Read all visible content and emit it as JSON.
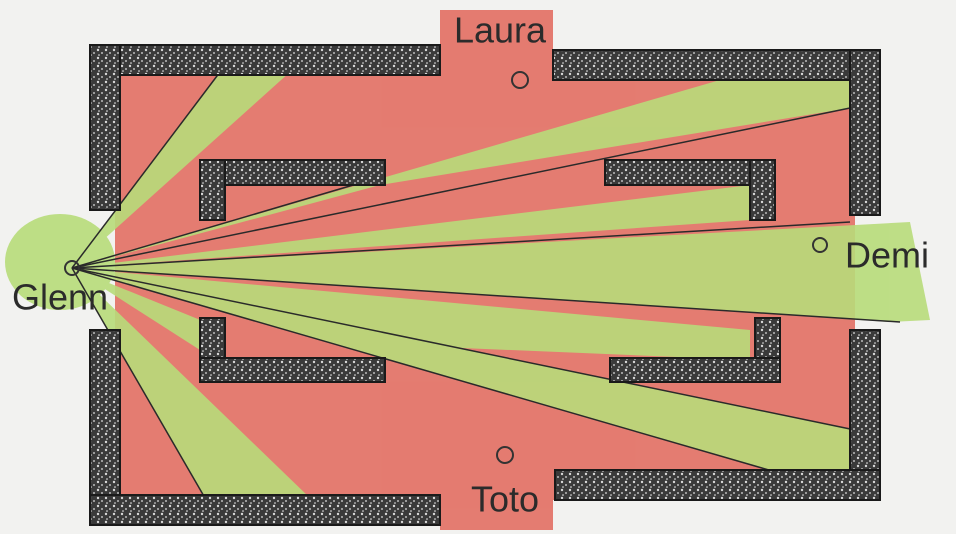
{
  "nodes": [
    {
      "label": "Laura"
    },
    {
      "label": "Demi"
    },
    {
      "label": "Glenn"
    },
    {
      "label": "Toto"
    }
  ]
}
